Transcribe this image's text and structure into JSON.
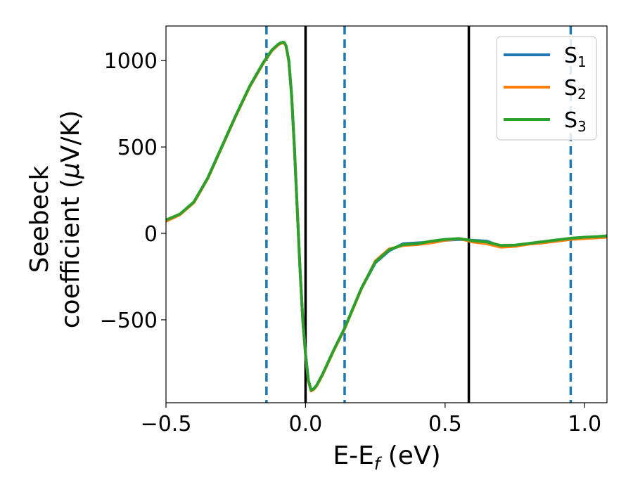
{
  "chart_data": {
    "type": "line",
    "xlabel": {
      "main": "E-E",
      "sub": "f",
      "unit": " (eV)"
    },
    "ylabel": {
      "line1": "Seebeck",
      "line2_pre": "coefficient  (",
      "mu": "μ",
      "line2_post": "V/K)"
    },
    "xlim": [
      -0.5,
      1.08
    ],
    "ylim": [
      -980,
      1200
    ],
    "x_ticks": [
      -0.5,
      0.0,
      0.5,
      1.0
    ],
    "x_tick_labels": [
      "−0.5",
      "0.0",
      "0.5",
      "1.0"
    ],
    "y_ticks": [
      -500,
      0,
      500,
      1000
    ],
    "y_tick_labels": [
      "−500",
      "0",
      "500",
      "1000"
    ],
    "grid": false,
    "legend_position": "top-right",
    "vertical_lines": [
      {
        "x": -0.14,
        "style": "dashed",
        "color": "#1f77b4"
      },
      {
        "x": 0.0,
        "style": "solid",
        "color": "#000000"
      },
      {
        "x": 0.14,
        "style": "dashed",
        "color": "#1f77b4"
      },
      {
        "x": 0.585,
        "style": "solid",
        "color": "#000000"
      },
      {
        "x": 0.95,
        "style": "dashed",
        "color": "#1f77b4"
      }
    ],
    "series": [
      {
        "name": "S",
        "sub": "1",
        "color": "#1f77b4",
        "x": [
          -0.5,
          -0.45,
          -0.4,
          -0.35,
          -0.3,
          -0.25,
          -0.2,
          -0.15,
          -0.12,
          -0.1,
          -0.09,
          -0.08,
          -0.075,
          -0.07,
          -0.06,
          -0.05,
          -0.04,
          -0.03,
          -0.02,
          -0.01,
          0.0,
          0.01,
          0.02,
          0.03,
          0.04,
          0.06,
          0.08,
          0.1,
          0.14,
          0.2,
          0.25,
          0.3,
          0.35,
          0.4,
          0.45,
          0.5,
          0.55,
          0.6,
          0.65,
          0.7,
          0.75,
          0.8,
          0.85,
          0.9,
          0.95,
          1.0,
          1.05,
          1.08
        ],
        "y": [
          75,
          110,
          180,
          320,
          500,
          680,
          850,
          990,
          1060,
          1090,
          1100,
          1105,
          1100,
          1085,
          1000,
          800,
          500,
          150,
          -200,
          -500,
          -700,
          -850,
          -910,
          -900,
          -880,
          -820,
          -750,
          -680,
          -550,
          -320,
          -170,
          -100,
          -60,
          -55,
          -50,
          -40,
          -35,
          -40,
          -45,
          -75,
          -70,
          -60,
          -50,
          -40,
          -30,
          -25,
          -20,
          -15
        ]
      },
      {
        "name": "S",
        "sub": "2",
        "color": "#ff7f0e",
        "x": [
          -0.5,
          -0.45,
          -0.4,
          -0.35,
          -0.3,
          -0.25,
          -0.2,
          -0.15,
          -0.12,
          -0.1,
          -0.09,
          -0.08,
          -0.075,
          -0.07,
          -0.06,
          -0.05,
          -0.04,
          -0.03,
          -0.02,
          -0.01,
          0.0,
          0.01,
          0.02,
          0.03,
          0.04,
          0.06,
          0.08,
          0.1,
          0.14,
          0.2,
          0.25,
          0.3,
          0.35,
          0.4,
          0.45,
          0.5,
          0.55,
          0.6,
          0.65,
          0.7,
          0.75,
          0.8,
          0.85,
          0.9,
          0.95,
          1.0,
          1.05,
          1.08
        ],
        "y": [
          70,
          108,
          178,
          318,
          498,
          678,
          848,
          988,
          1058,
          1088,
          1098,
          1103,
          1098,
          1083,
          998,
          798,
          498,
          148,
          -202,
          -502,
          -702,
          -852,
          -912,
          -902,
          -882,
          -822,
          -752,
          -682,
          -552,
          -322,
          -160,
          -90,
          -70,
          -65,
          -55,
          -40,
          -30,
          -50,
          -60,
          -80,
          -75,
          -62,
          -55,
          -45,
          -35,
          -30,
          -25,
          -22
        ]
      },
      {
        "name": "S",
        "sub": "3",
        "color": "#2ca02c",
        "x": [
          -0.5,
          -0.45,
          -0.4,
          -0.35,
          -0.3,
          -0.25,
          -0.2,
          -0.15,
          -0.12,
          -0.1,
          -0.09,
          -0.08,
          -0.075,
          -0.07,
          -0.06,
          -0.05,
          -0.04,
          -0.03,
          -0.02,
          -0.01,
          0.0,
          0.01,
          0.02,
          0.03,
          0.04,
          0.06,
          0.08,
          0.1,
          0.14,
          0.2,
          0.25,
          0.3,
          0.35,
          0.4,
          0.45,
          0.5,
          0.55,
          0.6,
          0.65,
          0.7,
          0.75,
          0.8,
          0.85,
          0.9,
          0.95,
          1.0,
          1.05,
          1.08
        ],
        "y": [
          78,
          112,
          182,
          322,
          502,
          682,
          852,
          992,
          1062,
          1092,
          1102,
          1107,
          1102,
          1087,
          1002,
          802,
          502,
          152,
          -198,
          -498,
          -698,
          -848,
          -908,
          -898,
          -878,
          -818,
          -748,
          -678,
          -548,
          -318,
          -165,
          -95,
          -65,
          -60,
          -45,
          -35,
          -30,
          -42,
          -50,
          -70,
          -68,
          -58,
          -48,
          -38,
          -28,
          -22,
          -18,
          -14
        ]
      }
    ]
  }
}
